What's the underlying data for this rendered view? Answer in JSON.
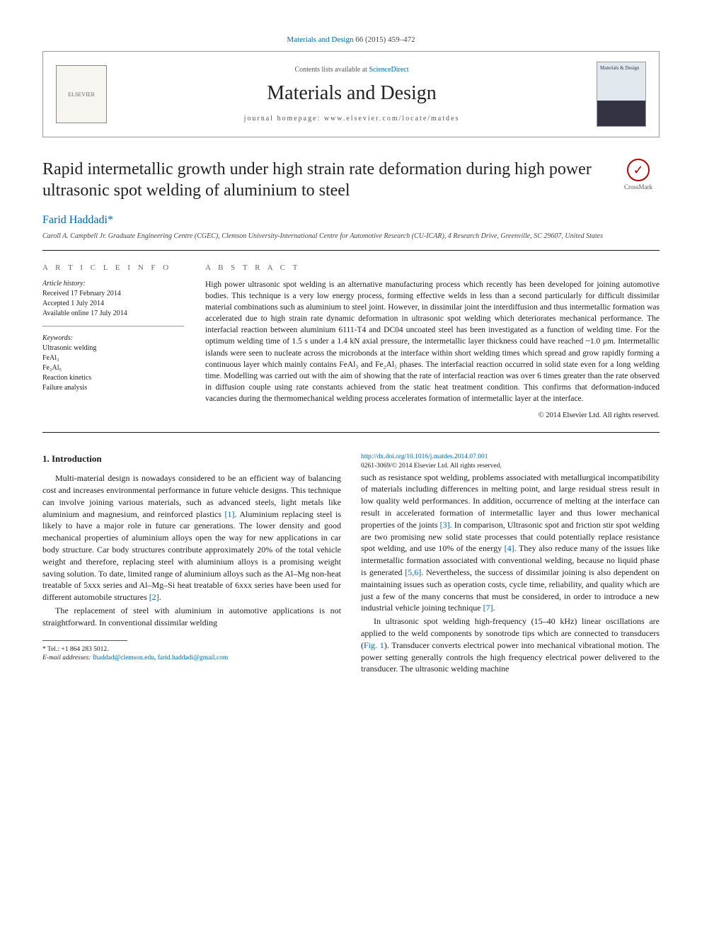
{
  "citation": {
    "journal_link": "Materials and Design",
    "ref": "66 (2015) 459–472"
  },
  "header": {
    "elsevier": "ELSEVIER",
    "contents": "Contents lists available at",
    "sciencedirect": "ScienceDirect",
    "journal_name": "Materials and Design",
    "homepage_label": "journal homepage:",
    "homepage_url": "www.elsevier.com/locate/matdes",
    "cover_title": "Materials & Design"
  },
  "crossmark": "CrossMark",
  "title": "Rapid intermetallic growth under high strain rate deformation during high power ultrasonic spot welding of aluminium to steel",
  "author": {
    "name": "Farid Haddadi",
    "marker": "*"
  },
  "affiliation": "Caroll A. Campbell Jr. Graduate Engineering Centre (CGEC), Clemson University-International Centre for Automotive Research (CU-ICAR), 4 Research Drive, Greenville, SC 29607, United States",
  "info": {
    "heading": "A R T I C L E   I N F O",
    "history_label": "Article history:",
    "received": "Received 17 February 2014",
    "accepted": "Accepted 1 July 2014",
    "online": "Available online 17 July 2014",
    "keywords_label": "Keywords:",
    "kw1": "Ultrasonic welding",
    "kw2": "FeAl₃",
    "kw3": "Fe₂Al₅",
    "kw4": "Reaction kinetics",
    "kw5": "Failure analysis"
  },
  "abstract": {
    "heading": "A B S T R A C T",
    "text": "High power ultrasonic spot welding is an alternative manufacturing process which recently has been developed for joining automotive bodies. This technique is a very low energy process, forming effective welds in less than a second particularly for difficult dissimilar material combinations such as aluminium to steel joint. However, in dissimilar joint the interdiffusion and thus intermetallic formation was accelerated due to high strain rate dynamic deformation in ultrasonic spot welding which deteriorates mechanical performance. The interfacial reaction between aluminium 6111-T4 and DC04 uncoated steel has been investigated as a function of welding time. For the optimum welding time of 1.5 s under a 1.4 kN axial pressure, the intermetallic layer thickness could have reached ~1.0 μm. Intermetallic islands were seen to nucleate across the microbonds at the interface within short welding times which spread and grow rapidly forming a continuous layer which mainly contains FeAl₃ and Fe₂Al₅ phases. The interfacial reaction occurred in solid state even for a long welding time. Modelling was carried out with the aim of showing that the rate of interfacial reaction was over 6 times greater than the rate observed in diffusion couple using rate constants achieved from the static heat treatment condition. This confirms that deformation-induced vacancies during the thermomechanical welding process accelerates formation of intermetallic layer at the interface.",
    "copyright": "© 2014 Elsevier Ltd. All rights reserved."
  },
  "body": {
    "h1": "1. Introduction",
    "p1": "Multi-material design is nowadays considered to be an efficient way of balancing cost and increases environmental performance in future vehicle designs. This technique can involve joining various materials, such as advanced steels, light metals like aluminium and magnesium, and reinforced plastics ",
    "ref1": "[1]",
    "p1b": ". Aluminium replacing steel is likely to have a major role in future car generations. The lower density and good mechanical properties of aluminium alloys open the way for new applications in car body structure. Car body structures contribute approximately 20% of the total vehicle weight and therefore, replacing steel with aluminium alloys is a promising weight saving solution. To date, limited range of aluminium alloys such as the Al–Mg non-heat treatable of 5xxx series and Al–Mg–Si heat treatable of 6xxx series have been used for different automobile structures ",
    "ref2": "[2]",
    "p1c": ".",
    "p2": "The replacement of steel with aluminium in automotive applications is not straightforward. In conventional dissimilar welding",
    "p3a": "such as resistance spot welding, problems associated with metallurgical incompatibility of materials including differences in melting point, and large residual stress result in low quality weld performances. In addition, occurrence of melting at the interface can result in accelerated formation of intermetallic layer and thus lower mechanical properties of the joints ",
    "ref3": "[3]",
    "p3b": ". In comparison, Ultrasonic spot and friction stir spot welding are two promising new solid state processes that could potentially replace resistance spot welding, and use 10% of the energy ",
    "ref4": "[4]",
    "p3c": ". They also reduce many of the issues like intermetallic formation associated with conventional welding, because no liquid phase is generated ",
    "ref56": "[5,6]",
    "p3d": ". Nevertheless, the success of dissimilar joining is also dependent on maintaining issues such as operation costs, cycle time, reliability, and quality which are just a few of the many concerns that must be considered, in order to introduce a new industrial vehicle joining technique ",
    "ref7": "[7]",
    "p3e": ".",
    "p4a": "In ultrasonic spot welding high-frequency (15–40 kHz) linear oscillations are applied to the weld components by sonotrode tips which are connected to transducers (",
    "fig1": "Fig. 1",
    "p4b": "). Transducer converts electrical power into mechanical vibrational motion. The power setting generally controls the high frequency electrical power delivered to the transducer. The ultrasonic welding machine"
  },
  "footnote": {
    "tel_label": "* Tel.: ",
    "tel": "+1 864 283 5012.",
    "email_label": "E-mail addresses:",
    "email1": "fhaddad@clemson.edu",
    "email2": "farid.haddadi@gmail.com"
  },
  "doi": {
    "url": "http://dx.doi.org/10.1016/j.matdes.2014.07.001",
    "issn": "0261-3069/© 2014 Elsevier Ltd. All rights reserved."
  },
  "colors": {
    "link": "#0066aa",
    "text": "#1a1a1a",
    "muted": "#555555",
    "border": "#999999"
  }
}
